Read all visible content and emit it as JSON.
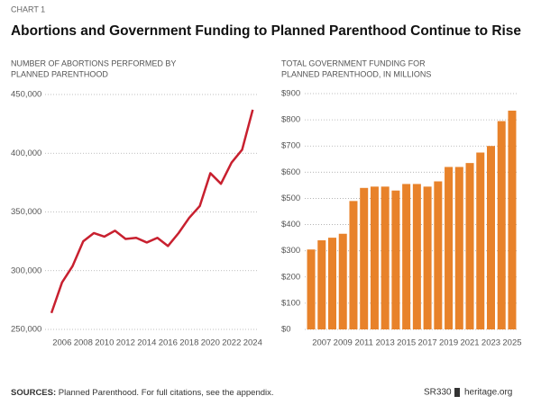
{
  "header": {
    "label": "CHART 1",
    "title": "Abortions and Government Funding to Planned Parenthood Continue to Rise"
  },
  "chart_data": [
    {
      "type": "line",
      "subtitle": [
        "NUMBER OF ABORTIONS PERFORMED BY",
        "PLANNED PARENTHOOD"
      ],
      "x": [
        2005,
        2006,
        2007,
        2008,
        2009,
        2010,
        2011,
        2012,
        2013,
        2014,
        2015,
        2016,
        2017,
        2018,
        2019,
        2020,
        2021,
        2022,
        2023,
        2024
      ],
      "series": [
        {
          "color": "#c8202f",
          "values": [
            264000,
            290000,
            304000,
            325000,
            332000,
            329000,
            334000,
            327000,
            328000,
            324000,
            328000,
            321000,
            332000,
            345000,
            355000,
            383000,
            374000,
            392000,
            403000,
            437000
          ]
        }
      ],
      "xlim": [
        2004.4,
        2024.4
      ],
      "xticks": [
        2006,
        2008,
        2010,
        2012,
        2014,
        2016,
        2018,
        2020,
        2022,
        2024
      ],
      "ylim": [
        250000,
        450000
      ],
      "yticks": [
        {
          "value": 250000,
          "label": "250,000"
        },
        {
          "value": 300000,
          "label": "300,000"
        },
        {
          "value": 350000,
          "label": "350,000"
        },
        {
          "value": 400000,
          "label": "400,000"
        },
        {
          "value": 450000,
          "label": "450,000"
        }
      ],
      "grid": true
    },
    {
      "type": "bar",
      "subtitle": [
        "TOTAL GOVERNMENT FUNDING FOR",
        "PLANNED PARENTHOOD, IN MILLIONS"
      ],
      "x": [
        2006,
        2007,
        2008,
        2009,
        2010,
        2011,
        2012,
        2013,
        2014,
        2015,
        2016,
        2017,
        2018,
        2019,
        2020,
        2021,
        2022,
        2023,
        2024,
        2025
      ],
      "series": [
        {
          "color": "#e8822a",
          "values": [
            305,
            340,
            350,
            365,
            490,
            540,
            545,
            545,
            530,
            555,
            555,
            545,
            565,
            620,
            620,
            635,
            675,
            700,
            795,
            835
          ]
        }
      ],
      "xlim": [
        2005.4,
        2025.6
      ],
      "xticks": [
        2007,
        2009,
        2011,
        2013,
        2015,
        2017,
        2019,
        2021,
        2023,
        2025
      ],
      "ylim": [
        0,
        900
      ],
      "yticks": [
        {
          "value": 0,
          "label": "$0"
        },
        {
          "value": 100,
          "label": "$100"
        },
        {
          "value": 200,
          "label": "$200"
        },
        {
          "value": 300,
          "label": "$300"
        },
        {
          "value": 400,
          "label": "$400"
        },
        {
          "value": 500,
          "label": "$500"
        },
        {
          "value": 600,
          "label": "$600"
        },
        {
          "value": 700,
          "label": "$700"
        },
        {
          "value": 800,
          "label": "$800"
        },
        {
          "value": 900,
          "label": "$900"
        }
      ],
      "grid": true
    }
  ],
  "footer": {
    "sources_label": "SOURCES:",
    "sources": "Planned Parenthood. For full citations, see the appendix.",
    "report": "SR330",
    "site": "heritage.org"
  }
}
